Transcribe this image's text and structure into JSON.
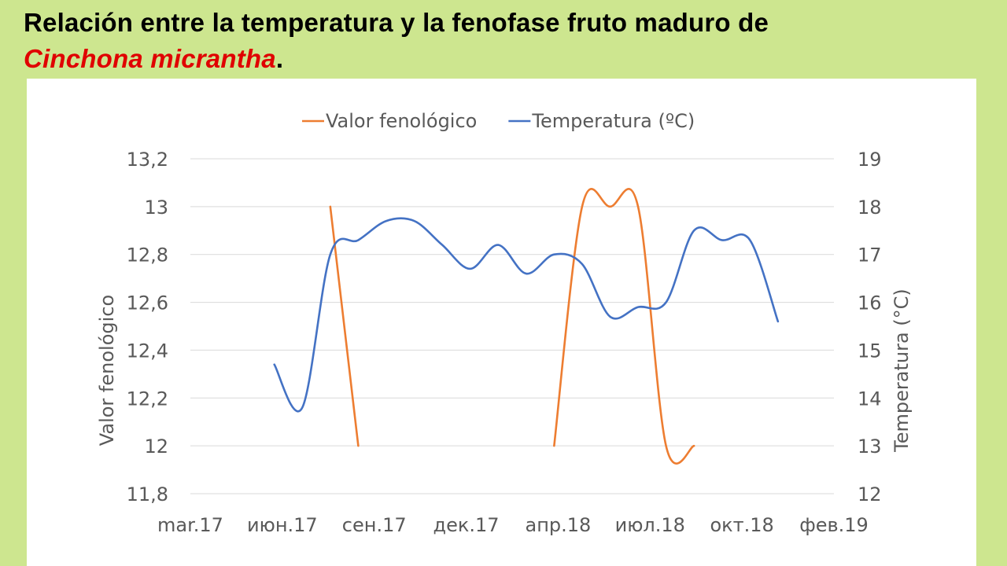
{
  "title": {
    "line1": "Relación entre la temperatura y la fenofase fruto maduro de",
    "species": "Cinchona micrantha",
    "end": "."
  },
  "chart_data": {
    "type": "line",
    "legend_position": "top",
    "x_labels": [
      "mar.17",
      "июн.17",
      "сен.17",
      "дек.17",
      "апр.18",
      "июл.18",
      "окт.18",
      "фев.19"
    ],
    "x_range": [
      "2017-03",
      "2019-02"
    ],
    "y_left": {
      "label": "Valor fenológico",
      "min": 11.8,
      "max": 13.2,
      "step": 0.2,
      "ticks": [
        "11,8",
        "12",
        "12,2",
        "12,4",
        "12,6",
        "12,8",
        "13",
        "13,2"
      ]
    },
    "y_right": {
      "label": "Temperatura (°C)",
      "min": 12,
      "max": 19,
      "step": 1,
      "ticks": [
        "12",
        "13",
        "14",
        "15",
        "16",
        "17",
        "18",
        "19"
      ]
    },
    "grid": true,
    "series": [
      {
        "name": "Valor fenológico",
        "color": "#ed7d31",
        "axis": "left",
        "segments": [
          [
            {
              "x": "2017-08",
              "y": 13.0
            },
            {
              "x": "2017-09",
              "y": 12.0
            }
          ],
          [
            {
              "x": "2018-04",
              "y": 12.0
            },
            {
              "x": "2018-05",
              "y": 13.0
            },
            {
              "x": "2018-06",
              "y": 13.0
            },
            {
              "x": "2018-07",
              "y": 13.0
            },
            {
              "x": "2018-08",
              "y": 12.0
            },
            {
              "x": "2018-09",
              "y": 12.0
            }
          ]
        ]
      },
      {
        "name": "Temperatura (ºC)",
        "color": "#4472c4",
        "axis": "right",
        "points": [
          {
            "x": "2017-06",
            "y": 14.7
          },
          {
            "x": "2017-07",
            "y": 13.8
          },
          {
            "x": "2017-08",
            "y": 17.0
          },
          {
            "x": "2017-09",
            "y": 17.3
          },
          {
            "x": "2017-10",
            "y": 17.7
          },
          {
            "x": "2017-11",
            "y": 17.7
          },
          {
            "x": "2017-12",
            "y": 17.2
          },
          {
            "x": "2018-01",
            "y": 16.7
          },
          {
            "x": "2018-02",
            "y": 17.2
          },
          {
            "x": "2018-03",
            "y": 16.6
          },
          {
            "x": "2018-04",
            "y": 17.0
          },
          {
            "x": "2018-05",
            "y": 16.8
          },
          {
            "x": "2018-06",
            "y": 15.7
          },
          {
            "x": "2018-07",
            "y": 15.9
          },
          {
            "x": "2018-08",
            "y": 16.0
          },
          {
            "x": "2018-09",
            "y": 17.5
          },
          {
            "x": "2018-10",
            "y": 17.3
          },
          {
            "x": "2018-11",
            "y": 17.3
          },
          {
            "x": "2018-12",
            "y": 15.6
          }
        ]
      }
    ]
  }
}
